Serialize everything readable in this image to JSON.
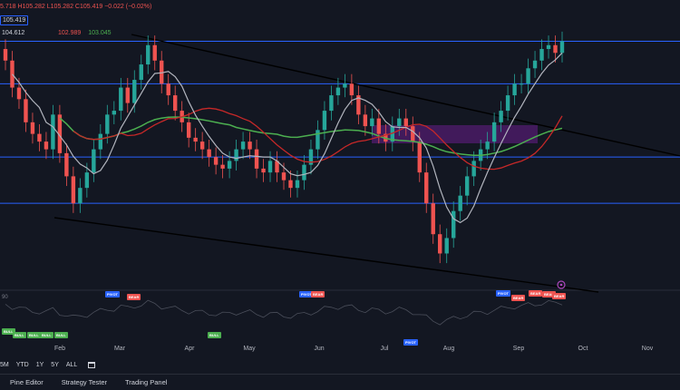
{
  "header": {
    "ohlc_text": "5.718 H105.282 L105.282 C105.419 −0.022 (−0.02%)",
    "price_chip_top": "105.419",
    "price_chip_second": "104.612",
    "ma_values": [
      "102.989",
      "103.045"
    ]
  },
  "colors": {
    "background": "#131722",
    "bull": "#26a69a",
    "bear": "#ef5350",
    "level_line": "#2962ff",
    "ma_fast": "#b2b5be",
    "ma_mid": "#c62828",
    "ma_slow": "#4caf50",
    "zone": "#7b1fa2",
    "trendline": "#000000"
  },
  "oscillator": {
    "label": "90",
    "signals": [
      {
        "text": "BULL",
        "kind": "bull"
      },
      {
        "text": "BULL",
        "kind": "bull"
      },
      {
        "text": "BULL",
        "kind": "bull"
      },
      {
        "text": "BULL",
        "kind": "bull"
      },
      {
        "text": "BULL",
        "kind": "bull"
      },
      {
        "text": "BULL",
        "kind": "bull"
      },
      {
        "text": "PIVOT",
        "kind": "pivot"
      },
      {
        "text": "BEAR",
        "kind": "bear"
      },
      {
        "text": "PIVOT",
        "kind": "pivot"
      },
      {
        "text": "BEAR",
        "kind": "bear"
      },
      {
        "text": "PIVOT",
        "kind": "pivot"
      },
      {
        "text": "PIVOT",
        "kind": "pivot"
      },
      {
        "text": "BEAR",
        "kind": "bear"
      },
      {
        "text": "BEAR",
        "kind": "bear"
      },
      {
        "text": "BEAR",
        "kind": "bear"
      },
      {
        "text": "BEAR",
        "kind": "bear"
      }
    ]
  },
  "x_axis": {
    "labels": [
      "Feb",
      "Mar",
      "Apr",
      "May",
      "Jun",
      "Jul",
      "Aug",
      "Sep",
      "Oct",
      "Nov"
    ]
  },
  "range_buttons": [
    "5M",
    "YTD",
    "1Y",
    "5Y",
    "ALL"
  ],
  "bottom_tabs": [
    "Pine Editor",
    "Strategy Tester",
    "Trading Panel"
  ],
  "chart_data": {
    "type": "candlestick",
    "horizontal_levels": [
      105.4,
      104.3,
      102.4,
      101.2
    ],
    "closes": [
      104.9,
      104.2,
      103.9,
      103.3,
      103.0,
      102.8,
      102.6,
      103.5,
      102.5,
      101.9,
      101.2,
      101.6,
      102.0,
      102.6,
      103.0,
      103.5,
      103.6,
      104.2,
      103.8,
      104.4,
      104.8,
      105.3,
      104.9,
      104.3,
      104.0,
      103.6,
      103.3,
      102.9,
      102.8,
      102.6,
      102.4,
      102.2,
      102.1,
      102.3,
      102.6,
      102.8,
      102.6,
      102.1,
      102.0,
      102.3,
      102.0,
      101.8,
      101.6,
      101.8,
      102.2,
      102.6,
      103.1,
      103.6,
      104.0,
      104.2,
      104.3,
      104.0,
      103.5,
      103.2,
      103.4,
      103.0,
      102.8,
      103.2,
      103.4,
      103.2,
      102.8,
      102.0,
      101.2,
      100.4,
      99.9,
      100.3,
      101.0,
      101.4,
      101.9,
      102.3,
      102.6,
      102.8,
      103.3,
      103.6,
      104.0,
      104.3,
      104.3,
      104.7,
      104.9,
      105.2,
      105.3,
      105.1,
      105.4
    ]
  }
}
